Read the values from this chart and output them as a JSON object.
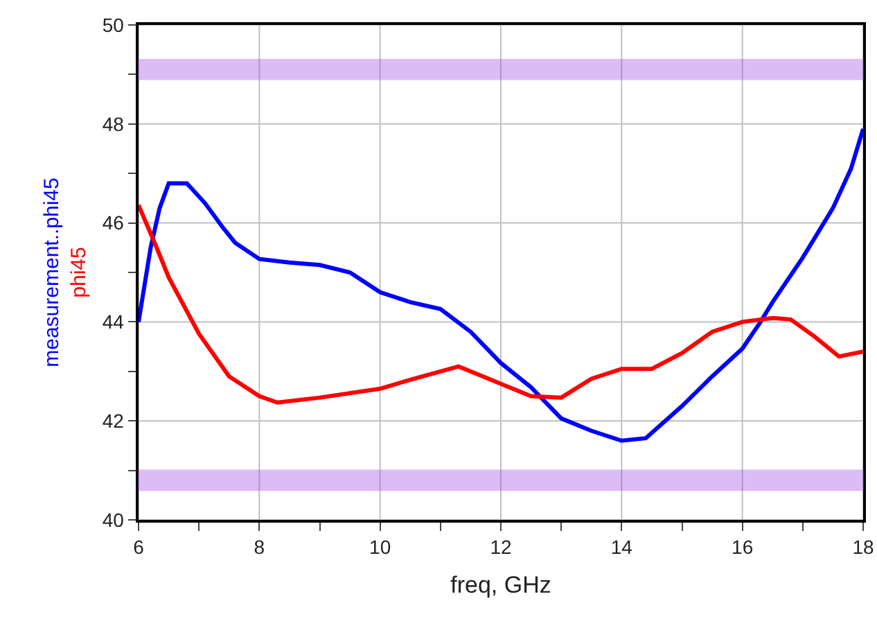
{
  "chart_data": {
    "type": "line",
    "xlabel": "freq, GHz",
    "xlim": [
      6,
      18
    ],
    "xticks": [
      6,
      {
        "value": 7,
        "label": null
      },
      8,
      {
        "value": 9,
        "label": null
      },
      10,
      {
        "value": 11,
        "label": null
      },
      12,
      {
        "value": 13,
        "label": null
      },
      14,
      {
        "value": 15,
        "label": null
      },
      16,
      {
        "value": 17,
        "label": null
      },
      18
    ],
    "ylim": [
      40,
      50
    ],
    "yticks": [
      40,
      {
        "value": 41,
        "label": null
      },
      42,
      {
        "value": 43,
        "label": null
      },
      44,
      {
        "value": 45,
        "label": null
      },
      46,
      {
        "value": 47,
        "label": null
      },
      48,
      {
        "value": 49,
        "label": null
      },
      50
    ],
    "grid": true,
    "legend": false,
    "line_style": "solid",
    "series": [
      {
        "name": "measurement..phi45",
        "color": "#0000ff",
        "x": [
          6,
          6.2,
          6.35,
          6.5,
          6.8,
          7.1,
          7.4,
          7.6,
          8,
          8.5,
          9,
          9.5,
          10,
          10.5,
          11,
          11.5,
          12,
          12.5,
          13,
          13.5,
          14,
          14.4,
          15,
          15.5,
          16,
          16.3,
          16.5,
          17,
          17.5,
          17.8,
          18
        ],
        "values": [
          44.0,
          45.5,
          46.3,
          46.8,
          46.8,
          46.4,
          45.9,
          45.6,
          45.27,
          45.2,
          45.15,
          45.0,
          44.6,
          44.4,
          44.26,
          43.8,
          43.17,
          42.68,
          42.05,
          41.8,
          41.6,
          41.65,
          42.3,
          42.9,
          43.46,
          44.0,
          44.4,
          45.3,
          46.3,
          47.1,
          47.9
        ]
      },
      {
        "name": "phi45",
        "color": "#ff0000",
        "x": [
          6,
          6.3,
          6.5,
          7,
          7.5,
          8,
          8.3,
          9,
          10,
          10.5,
          11.3,
          12,
          12.5,
          13,
          13.5,
          14,
          14.5,
          15,
          15.5,
          16,
          16.5,
          16.8,
          17.2,
          17.6,
          18
        ],
        "values": [
          46.36,
          45.5,
          44.9,
          43.76,
          42.9,
          42.5,
          42.37,
          42.47,
          42.65,
          42.83,
          43.1,
          42.75,
          42.5,
          42.47,
          42.85,
          43.05,
          43.05,
          43.37,
          43.8,
          44.0,
          44.08,
          44.05,
          43.7,
          43.3,
          43.4
        ]
      }
    ],
    "bands": [
      {
        "axis": "y",
        "from": 48.9,
        "to": 49.3,
        "color": "#a040e0"
      },
      {
        "axis": "y",
        "from": 40.6,
        "to": 41.0,
        "color": "#a040e0"
      }
    ]
  }
}
